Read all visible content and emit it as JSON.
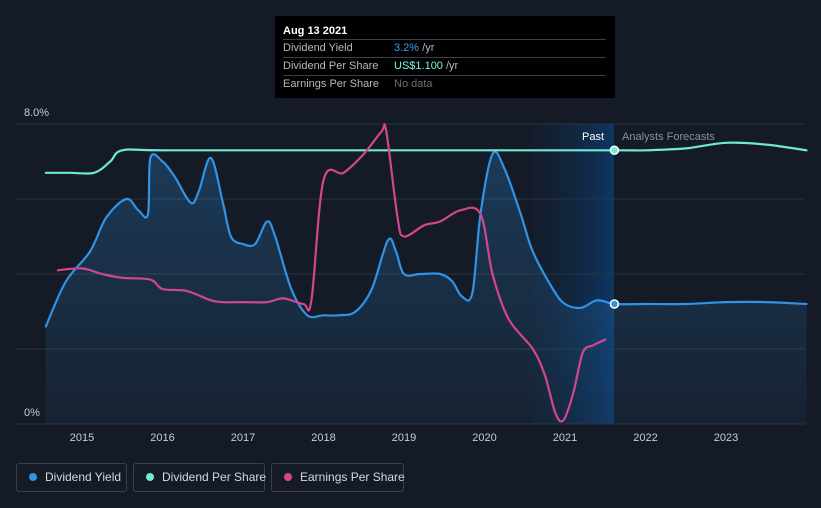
{
  "tooltip": {
    "date": "Aug 13 2021",
    "rows": [
      {
        "label": "Dividend Yield",
        "value": "3.2%",
        "unit": "/yr"
      },
      {
        "label": "Dividend Per Share",
        "value": "US$1.100",
        "unit": "/yr"
      },
      {
        "label": "Earnings Per Share",
        "value": "No data",
        "unit": ""
      }
    ]
  },
  "labels": {
    "past": "Past",
    "forecast": "Analysts Forecasts"
  },
  "legend": [
    {
      "label": "Dividend Yield",
      "color": "#2f93e6"
    },
    {
      "label": "Dividend Per Share",
      "color": "#6fe9d4"
    },
    {
      "label": "Earnings Per Share",
      "color": "#d2478b"
    }
  ],
  "chart_data": {
    "type": "line",
    "title": "",
    "xlabel": "",
    "ylabel": "",
    "x_ticks": [
      "2015",
      "2016",
      "2017",
      "2018",
      "2019",
      "2020",
      "2021",
      "2022",
      "2023"
    ],
    "y_ticks": [
      "0%",
      "8.0%"
    ],
    "ylim": [
      0,
      8
    ],
    "xlim": [
      2014.55,
      2024.0
    ],
    "past_end_date": "2021-08-13",
    "grid": "horizontal",
    "legend_position": "bottom-left",
    "series": [
      {
        "name": "Dividend Yield",
        "color": "#2f93e6",
        "fill": true,
        "points": [
          [
            2014.55,
            2.6
          ],
          [
            2014.8,
            3.8
          ],
          [
            2015.1,
            4.6
          ],
          [
            2015.3,
            5.5
          ],
          [
            2015.55,
            6.0
          ],
          [
            2015.7,
            5.7
          ],
          [
            2015.82,
            5.6
          ],
          [
            2015.85,
            7.1
          ],
          [
            2016.0,
            7.0
          ],
          [
            2016.15,
            6.6
          ],
          [
            2016.35,
            5.9
          ],
          [
            2016.45,
            6.2
          ],
          [
            2016.6,
            7.1
          ],
          [
            2016.75,
            5.9
          ],
          [
            2016.85,
            5.0
          ],
          [
            2017.0,
            4.8
          ],
          [
            2017.15,
            4.8
          ],
          [
            2017.3,
            5.4
          ],
          [
            2017.4,
            5.0
          ],
          [
            2017.6,
            3.6
          ],
          [
            2017.8,
            2.9
          ],
          [
            2018.0,
            2.9
          ],
          [
            2018.2,
            2.9
          ],
          [
            2018.4,
            3.0
          ],
          [
            2018.6,
            3.6
          ],
          [
            2018.8,
            4.9
          ],
          [
            2018.9,
            4.6
          ],
          [
            2019.0,
            4.0
          ],
          [
            2019.2,
            4.0
          ],
          [
            2019.45,
            4.0
          ],
          [
            2019.6,
            3.8
          ],
          [
            2019.72,
            3.4
          ],
          [
            2019.85,
            3.5
          ],
          [
            2019.95,
            5.6
          ],
          [
            2020.1,
            7.2
          ],
          [
            2020.25,
            6.8
          ],
          [
            2020.45,
            5.6
          ],
          [
            2020.6,
            4.6
          ],
          [
            2020.85,
            3.6
          ],
          [
            2021.0,
            3.2
          ],
          [
            2021.2,
            3.1
          ],
          [
            2021.4,
            3.3
          ],
          [
            2021.62,
            3.2
          ],
          [
            2022.0,
            3.2
          ],
          [
            2022.5,
            3.2
          ],
          [
            2023.0,
            3.25
          ],
          [
            2023.5,
            3.25
          ],
          [
            2024.0,
            3.2
          ]
        ]
      },
      {
        "name": "Dividend Per Share",
        "color": "#6fe9d4",
        "points": [
          [
            2014.55,
            6.7
          ],
          [
            2014.85,
            6.7
          ],
          [
            2015.15,
            6.7
          ],
          [
            2015.35,
            7.0
          ],
          [
            2015.5,
            7.3
          ],
          [
            2016.0,
            7.3
          ],
          [
            2018.0,
            7.3
          ],
          [
            2020.0,
            7.3
          ],
          [
            2021.62,
            7.3
          ],
          [
            2022.0,
            7.3
          ],
          [
            2022.5,
            7.35
          ],
          [
            2023.0,
            7.5
          ],
          [
            2023.5,
            7.45
          ],
          [
            2024.0,
            7.3
          ]
        ]
      },
      {
        "name": "Earnings Per Share",
        "color": "#d2478b",
        "points": [
          [
            2014.7,
            4.1
          ],
          [
            2015.0,
            4.15
          ],
          [
            2015.25,
            4.0
          ],
          [
            2015.5,
            3.9
          ],
          [
            2015.85,
            3.85
          ],
          [
            2016.0,
            3.6
          ],
          [
            2016.3,
            3.55
          ],
          [
            2016.6,
            3.3
          ],
          [
            2016.75,
            3.25
          ],
          [
            2017.0,
            3.25
          ],
          [
            2017.3,
            3.25
          ],
          [
            2017.5,
            3.35
          ],
          [
            2017.75,
            3.2
          ],
          [
            2017.85,
            3.3
          ],
          [
            2018.0,
            6.5
          ],
          [
            2018.25,
            6.7
          ],
          [
            2018.5,
            7.2
          ],
          [
            2018.72,
            7.8
          ],
          [
            2018.78,
            7.8
          ],
          [
            2018.92,
            5.5
          ],
          [
            2019.0,
            5.0
          ],
          [
            2019.25,
            5.3
          ],
          [
            2019.45,
            5.4
          ],
          [
            2019.7,
            5.7
          ],
          [
            2019.95,
            5.6
          ],
          [
            2020.1,
            4.0
          ],
          [
            2020.3,
            2.8
          ],
          [
            2020.6,
            2.0
          ],
          [
            2020.75,
            1.3
          ],
          [
            2020.88,
            0.3
          ],
          [
            2020.98,
            0.1
          ],
          [
            2021.1,
            0.8
          ],
          [
            2021.22,
            1.9
          ],
          [
            2021.35,
            2.1
          ],
          [
            2021.5,
            2.25
          ]
        ]
      }
    ]
  }
}
